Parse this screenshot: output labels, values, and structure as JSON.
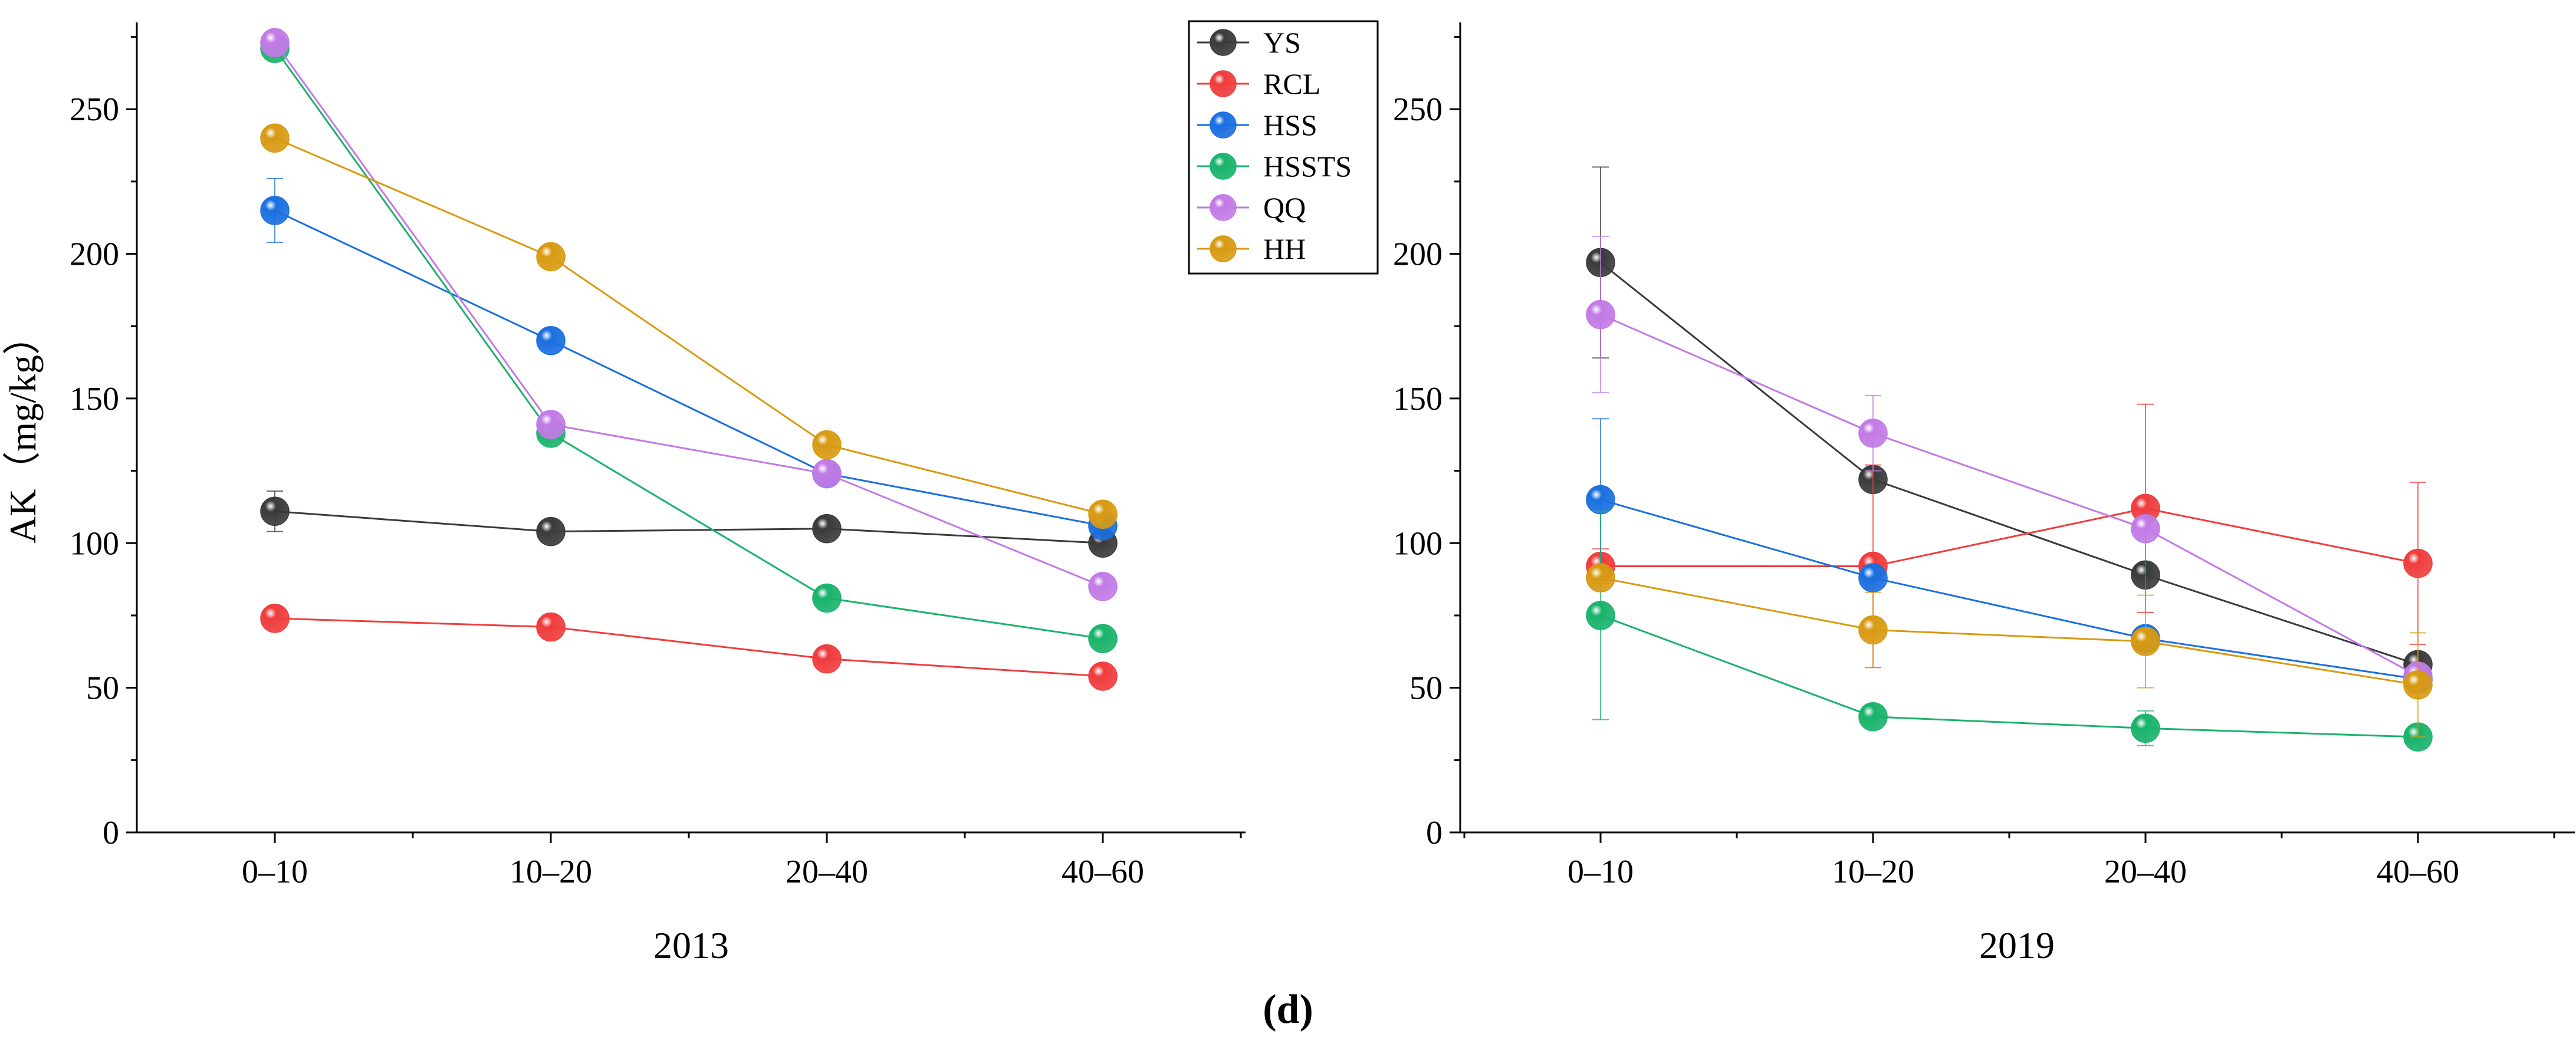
{
  "figure": {
    "label": "(d)",
    "ylabel": "AK（mg/kg）"
  },
  "colors": {
    "YS": "#3a3a3a",
    "RCL": "#f03c3c",
    "HSS": "#1a6fe0",
    "HSSTS": "#19b36b",
    "QQ": "#c27ae6",
    "HH": "#d89a12"
  },
  "chart_data": [
    {
      "type": "line",
      "title": "2013",
      "xlabel": "2013",
      "ylabel": "AK（mg/kg）",
      "categories": [
        "0–10",
        "10–20",
        "20–40",
        "40–60"
      ],
      "ylim": [
        0,
        280
      ],
      "yticks": [
        0,
        50,
        100,
        150,
        200,
        250
      ],
      "legend": {
        "placement": "top-right",
        "entries": [
          "YS",
          "RCL",
          "HSS",
          "HSSTS",
          "QQ",
          "HH"
        ]
      },
      "series": [
        {
          "name": "YS",
          "values": [
            111,
            104,
            105,
            100
          ],
          "errors": [
            7,
            2,
            2,
            2
          ]
        },
        {
          "name": "RCL",
          "values": [
            74,
            71,
            60,
            54
          ],
          "errors": [
            2,
            4,
            2,
            2
          ]
        },
        {
          "name": "HSS",
          "values": [
            215,
            170,
            124,
            106
          ],
          "errors": [
            11,
            3,
            2,
            2
          ]
        },
        {
          "name": "HSSTS",
          "values": [
            271,
            138,
            81,
            67
          ],
          "errors": [
            2,
            2,
            2,
            2
          ]
        },
        {
          "name": "QQ",
          "values": [
            273,
            141,
            124,
            85
          ],
          "errors": [
            2,
            2,
            2,
            2
          ]
        },
        {
          "name": "HH",
          "values": [
            240,
            199,
            134,
            110
          ],
          "errors": [
            2,
            2,
            2,
            2
          ]
        }
      ]
    },
    {
      "type": "line",
      "title": "2019",
      "xlabel": "2019",
      "ylabel": "",
      "categories": [
        "0–10",
        "10–20",
        "20–40",
        "40–60"
      ],
      "ylim": [
        0,
        280
      ],
      "yticks": [
        0,
        50,
        100,
        150,
        200,
        250
      ],
      "series": [
        {
          "name": "YS",
          "values": [
            197,
            122,
            89,
            58
          ],
          "errors": [
            33,
            3,
            2,
            2
          ]
        },
        {
          "name": "RCL",
          "values": [
            92,
            92,
            112,
            93
          ],
          "errors": [
            6,
            35,
            36,
            28
          ]
        },
        {
          "name": "HSS",
          "values": [
            115,
            88,
            67,
            53
          ],
          "errors": [
            28,
            3,
            2,
            2
          ]
        },
        {
          "name": "HSSTS",
          "values": [
            75,
            40,
            36,
            33
          ],
          "errors": [
            36,
            3,
            6,
            2
          ]
        },
        {
          "name": "QQ",
          "values": [
            179,
            138,
            105,
            54
          ],
          "errors": [
            27,
            13,
            2,
            2
          ]
        },
        {
          "name": "HH",
          "values": [
            88,
            70,
            66,
            51
          ],
          "errors": [
            2,
            13,
            16,
            18
          ]
        }
      ]
    }
  ]
}
